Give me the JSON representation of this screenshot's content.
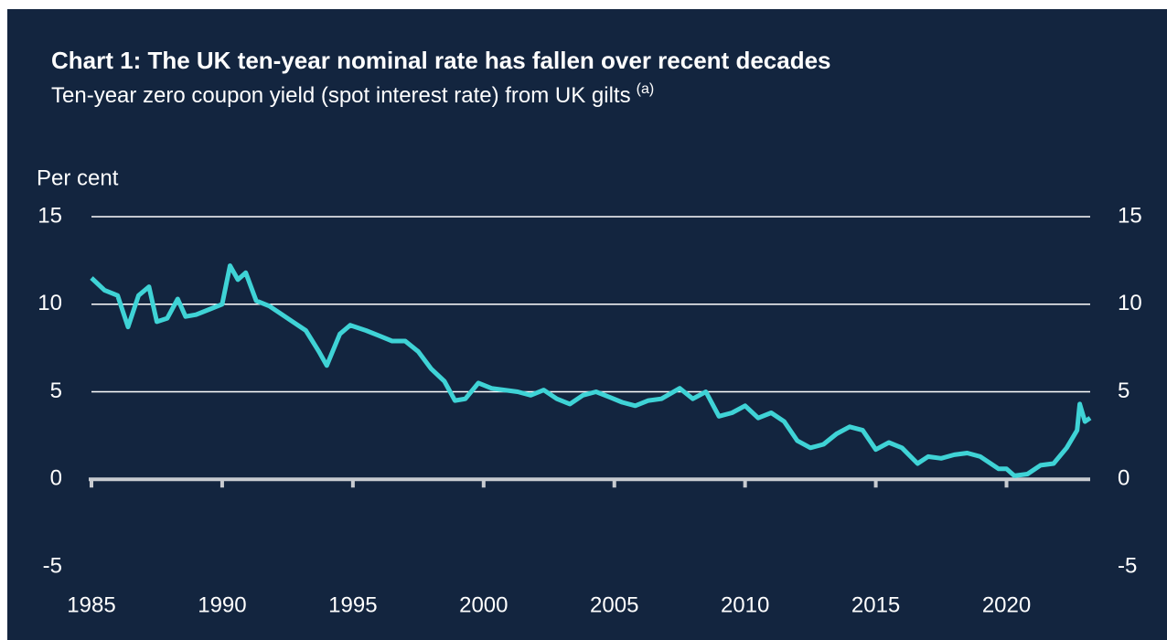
{
  "chart_data": {
    "type": "line",
    "title": "Chart 1: The UK ten-year nominal rate has fallen over recent decades",
    "subtitle": "Ten-year zero coupon yield (spot interest rate) from UK gilts",
    "subtitle_note": "(a)",
    "y_label": "Per cent",
    "xlim": [
      1985,
      2023.2
    ],
    "xticks": [
      1985,
      1990,
      1995,
      2000,
      2005,
      2010,
      2015,
      2020
    ],
    "ylim": [
      -5,
      15
    ],
    "yticks": [
      -5,
      0,
      5,
      10,
      15
    ],
    "grid": true,
    "x": [
      1985.0,
      1985.5,
      1986.0,
      1986.4,
      1986.8,
      1987.2,
      1987.5,
      1987.9,
      1988.3,
      1988.6,
      1989.0,
      1989.5,
      1990.0,
      1990.3,
      1990.6,
      1990.9,
      1991.3,
      1991.8,
      1992.2,
      1992.7,
      1993.2,
      1993.7,
      1994.0,
      1994.5,
      1994.9,
      1995.5,
      1996.0,
      1996.5,
      1997.0,
      1997.5,
      1998.0,
      1998.5,
      1998.9,
      1999.3,
      1999.8,
      2000.3,
      2000.8,
      2001.3,
      2001.8,
      2002.3,
      2002.8,
      2003.3,
      2003.8,
      2004.3,
      2004.8,
      2005.3,
      2005.8,
      2006.3,
      2006.8,
      2007.5,
      2008.0,
      2008.5,
      2009.0,
      2009.5,
      2010.0,
      2010.5,
      2011.0,
      2011.5,
      2012.0,
      2012.5,
      2013.0,
      2013.5,
      2014.0,
      2014.5,
      2015.0,
      2015.5,
      2016.0,
      2016.6,
      2017.0,
      2017.5,
      2018.0,
      2018.5,
      2019.0,
      2019.7,
      2020.0,
      2020.3,
      2020.8,
      2021.3,
      2021.8,
      2022.3,
      2022.7,
      2022.8,
      2023.0,
      2023.2
    ],
    "series": [
      {
        "name": "Ten-year zero coupon yield",
        "color": "#3fd3d6",
        "values": [
          11.5,
          10.8,
          10.5,
          8.7,
          10.5,
          11.0,
          9.0,
          9.2,
          10.3,
          9.3,
          9.4,
          9.7,
          10.0,
          12.2,
          11.4,
          11.8,
          10.2,
          9.9,
          9.5,
          9.0,
          8.5,
          7.3,
          6.5,
          8.3,
          8.8,
          8.5,
          8.2,
          7.9,
          7.9,
          7.3,
          6.3,
          5.6,
          4.5,
          4.6,
          5.5,
          5.2,
          5.1,
          5.0,
          4.8,
          5.1,
          4.6,
          4.3,
          4.8,
          5.0,
          4.7,
          4.4,
          4.2,
          4.5,
          4.6,
          5.2,
          4.6,
          5.0,
          3.6,
          3.8,
          4.2,
          3.5,
          3.8,
          3.3,
          2.2,
          1.8,
          2.0,
          2.6,
          3.0,
          2.8,
          1.7,
          2.1,
          1.8,
          0.9,
          1.3,
          1.2,
          1.4,
          1.5,
          1.3,
          0.6,
          0.6,
          0.2,
          0.3,
          0.8,
          0.9,
          1.8,
          2.8,
          4.3,
          3.3,
          3.5
        ]
      }
    ]
  }
}
